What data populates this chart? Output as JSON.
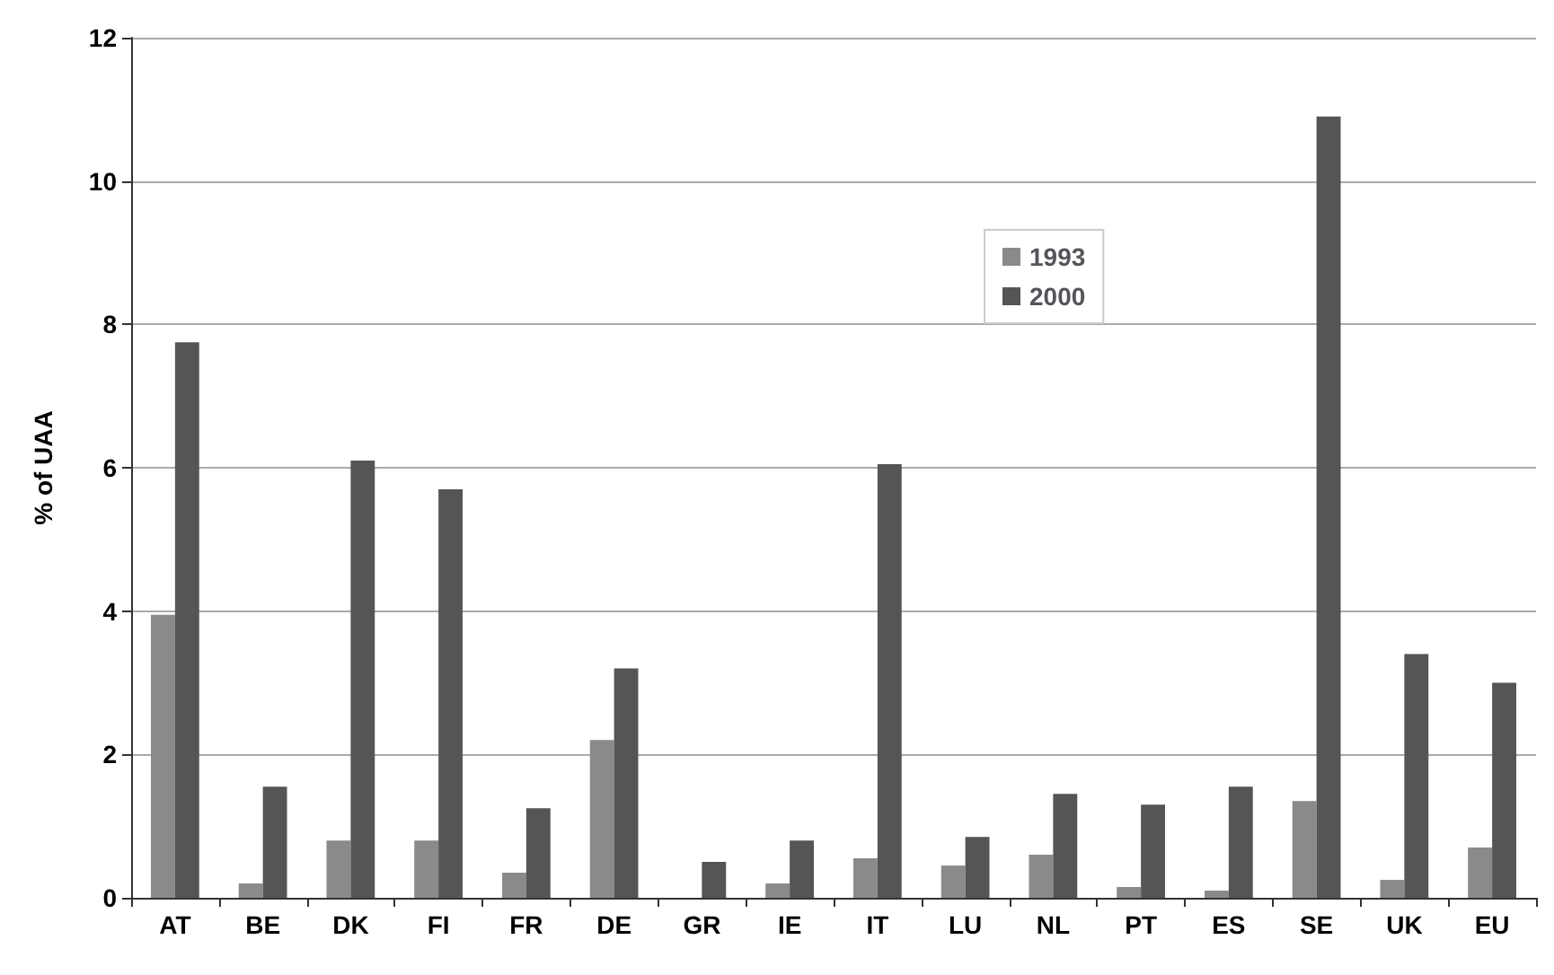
{
  "chart_data": {
    "type": "bar",
    "ylabel": "% of UAA",
    "categories": [
      "AT",
      "BE",
      "DK",
      "FI",
      "FR",
      "DE",
      "GR",
      "IE",
      "IT",
      "LU",
      "NL",
      "PT",
      "ES",
      "SE",
      "UK",
      "EU"
    ],
    "series": [
      {
        "name": "1993",
        "color": "#8a8a8a",
        "values": [
          3.95,
          0.2,
          0.8,
          0.8,
          0.35,
          2.2,
          0,
          0.2,
          0.55,
          0.45,
          0.6,
          0.15,
          0.1,
          1.35,
          0.25,
          0.7
        ]
      },
      {
        "name": "2000",
        "color": "#555555",
        "values": [
          7.75,
          1.55,
          6.1,
          5.7,
          1.25,
          3.2,
          0.5,
          0.8,
          6.05,
          0.85,
          1.45,
          1.3,
          1.55,
          10.9,
          3.4,
          3.0
        ]
      }
    ],
    "ylim": [
      0,
      12
    ],
    "yticks": [
      0,
      2,
      4,
      6,
      8,
      10,
      12
    ],
    "grid": "y",
    "legend": "top right"
  }
}
